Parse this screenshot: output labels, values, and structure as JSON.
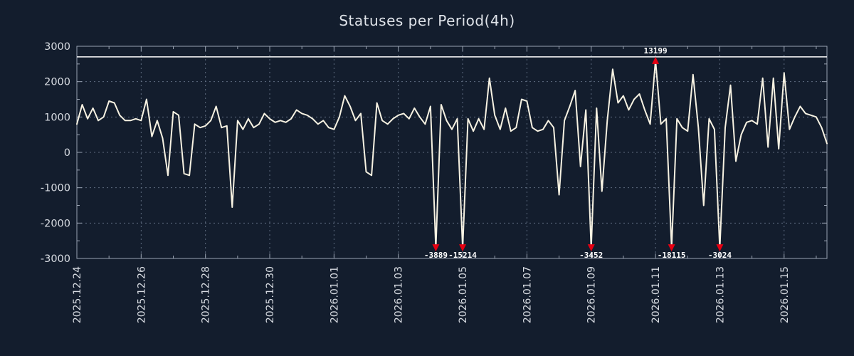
{
  "colors": {
    "background": "#131d2d",
    "line": "#f7f2e2",
    "grid": "#5f6c80",
    "border": "#9aa3b2",
    "boundary_line": "#ffffff",
    "marker": "#e60012",
    "tick_text": "#d8dce2",
    "title_text": "#dfe3e9",
    "annotation_text": "#ffffff"
  },
  "chart_data": {
    "type": "line",
    "title": "Statuses per Period(4h)",
    "xlabel": "",
    "ylabel": "",
    "ylim": [
      -3000,
      3000
    ],
    "yticks": [
      3000,
      2000,
      1000,
      0,
      -1000,
      -2000,
      -3000
    ],
    "y_minor_step": 500,
    "grid": true,
    "legend": "none",
    "period_hours": 4,
    "x_tick_every": 12,
    "x_minor_every": 6,
    "xticks": [
      "2025.12.24",
      "2025.12.26",
      "2025.12.28",
      "2025.12.30",
      "2026.01.01",
      "2026.01.03",
      "2026.01.05",
      "2026.01.07",
      "2026.01.09",
      "2026.01.11",
      "2026.01.13",
      "2026.01.15"
    ],
    "clip": {
      "top": 2600,
      "bottom": -2700,
      "boundary_line": 2700
    },
    "values": [
      800,
      1350,
      950,
      1250,
      900,
      1000,
      1450,
      1400,
      1050,
      900,
      900,
      950,
      900,
      1500,
      450,
      900,
      400,
      -650,
      1150,
      1050,
      -600,
      -650,
      800,
      700,
      750,
      900,
      1300,
      700,
      750,
      -1550,
      900,
      650,
      950,
      700,
      800,
      1100,
      950,
      850,
      900,
      850,
      950,
      1200,
      1100,
      1050,
      950,
      800,
      900,
      700,
      650,
      1000,
      1600,
      1300,
      900,
      1100,
      -550,
      -650,
      1400,
      900,
      800,
      950,
      1050,
      1100,
      950,
      1250,
      1000,
      800,
      1300,
      -3889,
      1350,
      900,
      650,
      950,
      -15214,
      950,
      600,
      950,
      650,
      2100,
      1050,
      650,
      1250,
      600,
      700,
      1500,
      1450,
      700,
      600,
      650,
      900,
      700,
      -1200,
      900,
      1300,
      1750,
      -400,
      1200,
      -3452,
      1250,
      -1100,
      900,
      2350,
      1400,
      1600,
      1200,
      1500,
      1650,
      1200,
      800,
      13199,
      800,
      950,
      -18115,
      950,
      700,
      600,
      2200,
      700,
      -1500,
      950,
      650,
      -3024,
      700,
      1900,
      -250,
      500,
      850,
      900,
      800,
      2100,
      150,
      2100,
      100,
      2250,
      650,
      1000,
      1300,
      1100,
      1050,
      1000,
      700,
      250
    ],
    "annotations": [
      {
        "index": 67,
        "value": -3889,
        "label": "-3889"
      },
      {
        "index": 72,
        "value": -15214,
        "label": "-15214"
      },
      {
        "index": 96,
        "value": -3452,
        "label": "-3452"
      },
      {
        "index": 108,
        "value": 13199,
        "label": "13199"
      },
      {
        "index": 111,
        "value": -18115,
        "label": "-18115"
      },
      {
        "index": 120,
        "value": -3024,
        "label": "-3024"
      }
    ]
  }
}
